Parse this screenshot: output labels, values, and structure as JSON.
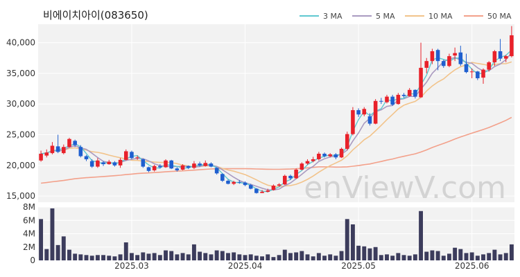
{
  "chart_data": {
    "type": "candlestick",
    "title": "비에이치아이(083650)",
    "watermark": "enViewV.com",
    "colors": {
      "up": "#e8212a",
      "down": "#1f5fcf",
      "volume": "#3c3c5c",
      "ma3": "#5ec8d0",
      "ma5": "#a99ac0",
      "ma10": "#f2c38a",
      "ma50": "#f3a08a",
      "plot_bg": "#f2f2f2",
      "grid": "#ffffff"
    },
    "legend": [
      {
        "label": "3 MA",
        "color": "#5ec8d0"
      },
      {
        "label": "5 MA",
        "color": "#a99ac0"
      },
      {
        "label": "10 MA",
        "color": "#f2c38a"
      },
      {
        "label": "50 MA",
        "color": "#f3a08a"
      }
    ],
    "price_axis": {
      "ylim": [
        14000,
        43000
      ],
      "ticks": [
        15000,
        20000,
        25000,
        30000,
        35000,
        40000
      ],
      "tick_labels": [
        "15,000",
        "20,000",
        "25,000",
        "30,000",
        "35,000",
        "40,000"
      ]
    },
    "volume_axis": {
      "ylim": [
        0,
        8000000
      ],
      "ticks": [
        0,
        2000000,
        4000000,
        6000000,
        8000000
      ],
      "tick_labels": [
        "0",
        "2M",
        "4M",
        "6M",
        "8M"
      ]
    },
    "x_ticks": [
      {
        "index": 16,
        "label": "2025.03"
      },
      {
        "index": 36,
        "label": "2025.04"
      },
      {
        "index": 56,
        "label": "2025.05"
      },
      {
        "index": 76,
        "label": "2025.06"
      }
    ],
    "candles": [
      [
        20800,
        21900,
        22400,
        20600
      ],
      [
        21600,
        22100,
        22600,
        21300
      ],
      [
        22000,
        23200,
        23800,
        21800
      ],
      [
        23100,
        22200,
        25000,
        22000
      ],
      [
        22000,
        23000,
        23400,
        21800
      ],
      [
        23000,
        24300,
        24500,
        22900
      ],
      [
        24000,
        23300,
        24200,
        23000
      ],
      [
        23000,
        21500,
        23300,
        21300
      ],
      [
        21500,
        21000,
        21700,
        20700
      ],
      [
        20700,
        19800,
        21000,
        19600
      ],
      [
        19800,
        20800,
        21200,
        19600
      ],
      [
        20500,
        20200,
        20700,
        19900
      ],
      [
        20200,
        20600,
        20900,
        20100
      ],
      [
        20500,
        20000,
        20700,
        19800
      ],
      [
        20000,
        20900,
        21200,
        19600
      ],
      [
        20900,
        22300,
        22600,
        20800
      ],
      [
        22200,
        21200,
        22400,
        21000
      ],
      [
        21300,
        21300,
        21600,
        20900
      ],
      [
        21000,
        19800,
        21100,
        19600
      ],
      [
        19700,
        19100,
        19800,
        18900
      ],
      [
        19200,
        19900,
        20100,
        19000
      ],
      [
        19900,
        19700,
        20200,
        19500
      ],
      [
        19700,
        20800,
        21000,
        19600
      ],
      [
        20800,
        19500,
        20900,
        19400
      ],
      [
        19500,
        19200,
        19700,
        19000
      ],
      [
        19300,
        20000,
        20200,
        19200
      ],
      [
        19900,
        19600,
        20000,
        19400
      ],
      [
        19600,
        20300,
        20700,
        19400
      ],
      [
        20300,
        20000,
        20600,
        19800
      ],
      [
        19900,
        20400,
        20800,
        19800
      ],
      [
        20300,
        19800,
        20500,
        19700
      ],
      [
        19600,
        18700,
        19700,
        18500
      ],
      [
        18600,
        17500,
        18700,
        17300
      ],
      [
        17500,
        17000,
        17700,
        16900
      ],
      [
        17000,
        17300,
        17500,
        16800
      ],
      [
        17300,
        17200,
        17600,
        17000
      ],
      [
        17200,
        16800,
        17400,
        16600
      ],
      [
        16800,
        16200,
        17000,
        16100
      ],
      [
        16200,
        15500,
        16300,
        15400
      ],
      [
        15500,
        15700,
        16000,
        15500
      ],
      [
        15700,
        15900,
        16200,
        15600
      ],
      [
        16000,
        16700,
        16900,
        15900
      ],
      [
        16700,
        16900,
        17100,
        16500
      ],
      [
        16900,
        18300,
        18500,
        16800
      ],
      [
        18300,
        17900,
        18500,
        17600
      ],
      [
        17900,
        19300,
        19500,
        17800
      ],
      [
        19300,
        20300,
        20500,
        19200
      ],
      [
        20300,
        20700,
        21000,
        20100
      ],
      [
        20700,
        21000,
        21400,
        20500
      ],
      [
        21000,
        21900,
        22200,
        20800
      ],
      [
        21900,
        21500,
        22100,
        21300
      ],
      [
        21500,
        21800,
        22000,
        21300
      ],
      [
        21800,
        21300,
        22000,
        21000
      ],
      [
        21300,
        22700,
        22900,
        21200
      ],
      [
        22700,
        25100,
        25500,
        22500
      ],
      [
        25100,
        29000,
        29500,
        24900
      ],
      [
        29000,
        28300,
        29300,
        27900
      ],
      [
        28300,
        29200,
        29500,
        28000
      ],
      [
        28000,
        26800,
        28500,
        26500
      ],
      [
        26800,
        30500,
        30800,
        26700
      ],
      [
        30500,
        30400,
        31000,
        30000
      ],
      [
        30300,
        31200,
        31500,
        30100
      ],
      [
        31200,
        29900,
        31500,
        29700
      ],
      [
        30000,
        31500,
        31800,
        29900
      ],
      [
        31500,
        31300,
        31800,
        31000
      ],
      [
        31300,
        32300,
        32600,
        31200
      ],
      [
        32300,
        31200,
        32400,
        30900
      ],
      [
        31100,
        35900,
        40000,
        31000
      ],
      [
        35900,
        37000,
        37500,
        35000
      ],
      [
        37000,
        38600,
        39000,
        36500
      ],
      [
        38800,
        37000,
        39000,
        35500
      ],
      [
        37000,
        36200,
        37200,
        35900
      ],
      [
        36200,
        37800,
        38200,
        36000
      ],
      [
        37900,
        38300,
        39200,
        37000
      ],
      [
        38400,
        36500,
        39500,
        36200
      ],
      [
        36500,
        35200,
        38200,
        35000
      ],
      [
        35200,
        35300,
        35800,
        34200
      ],
      [
        35300,
        34200,
        35400,
        33900
      ],
      [
        34300,
        35600,
        35800,
        33300
      ],
      [
        35600,
        36800,
        37000,
        35300
      ],
      [
        36800,
        38600,
        38800,
        36200
      ],
      [
        38600,
        37400,
        40600,
        37000
      ],
      [
        37400,
        37800,
        38000,
        36800
      ],
      [
        37800,
        41200,
        42700,
        37600
      ]
    ],
    "volumes": [
      6200000,
      1700000,
      7800000,
      2300000,
      3600000,
      1600000,
      1000000,
      900000,
      800000,
      700000,
      800000,
      800000,
      700000,
      600000,
      900000,
      2700000,
      1100000,
      800000,
      1200000,
      1000000,
      1100000,
      800000,
      1500000,
      1400000,
      900000,
      1100000,
      900000,
      2400000,
      1300000,
      1100000,
      900000,
      1500000,
      1400000,
      1100000,
      1200000,
      900000,
      800000,
      900000,
      700000,
      600000,
      900000,
      500000,
      800000,
      1600000,
      1100000,
      1200000,
      1400000,
      900000,
      600000,
      1100000,
      700000,
      900000,
      700000,
      1400000,
      6200000,
      5400000,
      2200000,
      2100000,
      1800000,
      2000000,
      800000,
      900000,
      700000,
      1100000,
      800000,
      700000,
      900000,
      7400000,
      1300000,
      1500000,
      1400000,
      700000,
      1000000,
      1900000,
      1700000,
      1100000,
      1200000,
      700000,
      900000,
      1100000,
      1600000,
      900000,
      1100000,
      2400000
    ]
  }
}
